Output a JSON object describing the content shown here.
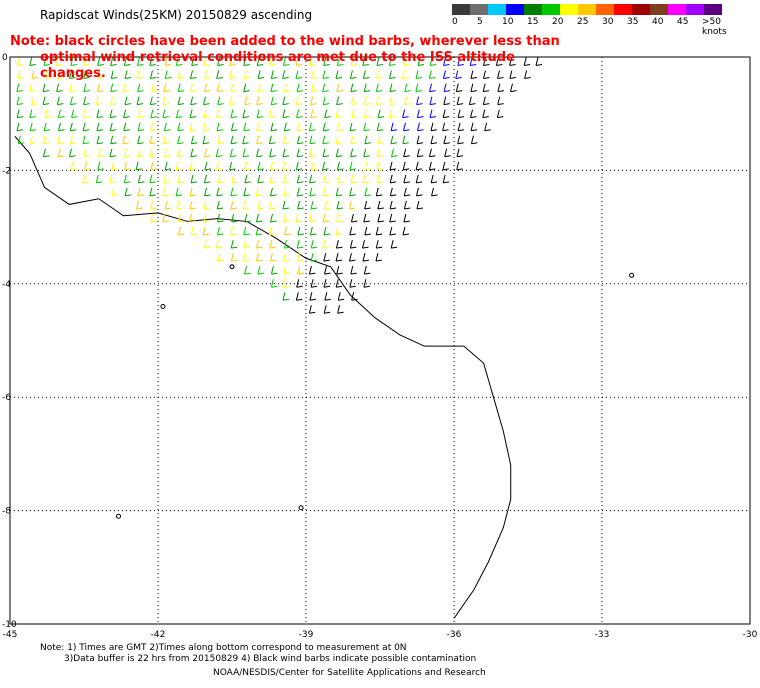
{
  "title": "Rapidscat Winds(25KM) 20150829 ascending",
  "note": {
    "line1": "Note: black circles have been added to the wind barbs, wherever less than",
    "line2": "optimal wind retrieval conditions are met due to the ISS altitude changes."
  },
  "legend": {
    "colors": [
      "#3a3a3a",
      "#6e6e6e",
      "#00c8ff",
      "#0000ff",
      "#007f00",
      "#00c800",
      "#ffff00",
      "#ffc800",
      "#ff6400",
      "#ff0000",
      "#a00000",
      "#7f3f1f",
      "#ff00ff",
      "#a000ff",
      "#5a0080"
    ],
    "labels": [
      "0",
      "5",
      "10",
      "15",
      "20",
      "25",
      "30",
      "35",
      "40",
      "45",
      ">50 knots"
    ],
    "label_positions_index": [
      0,
      2,
      4,
      6,
      8,
      10,
      12,
      14,
      16,
      18,
      20
    ]
  },
  "map": {
    "x_ticks": [
      "-45",
      "-42",
      "-39",
      "-36",
      "-33",
      "-30"
    ],
    "y_ticks": [
      "0",
      "-2",
      "-4",
      "-6",
      "-8",
      "-10"
    ],
    "lon_range": [
      -45,
      -30
    ],
    "lat_range": [
      -10,
      0
    ]
  },
  "footer": {
    "line1": "Note: 1) Times are GMT 2)Times along bottom correspond to measurement at 0N",
    "line2": "3)Data buffer is 22 hrs from 20150829 4) Black wind barbs indicate possible contamination",
    "line3": "NOAA/NESDIS/Center for Satellite Applications and Research"
  }
}
